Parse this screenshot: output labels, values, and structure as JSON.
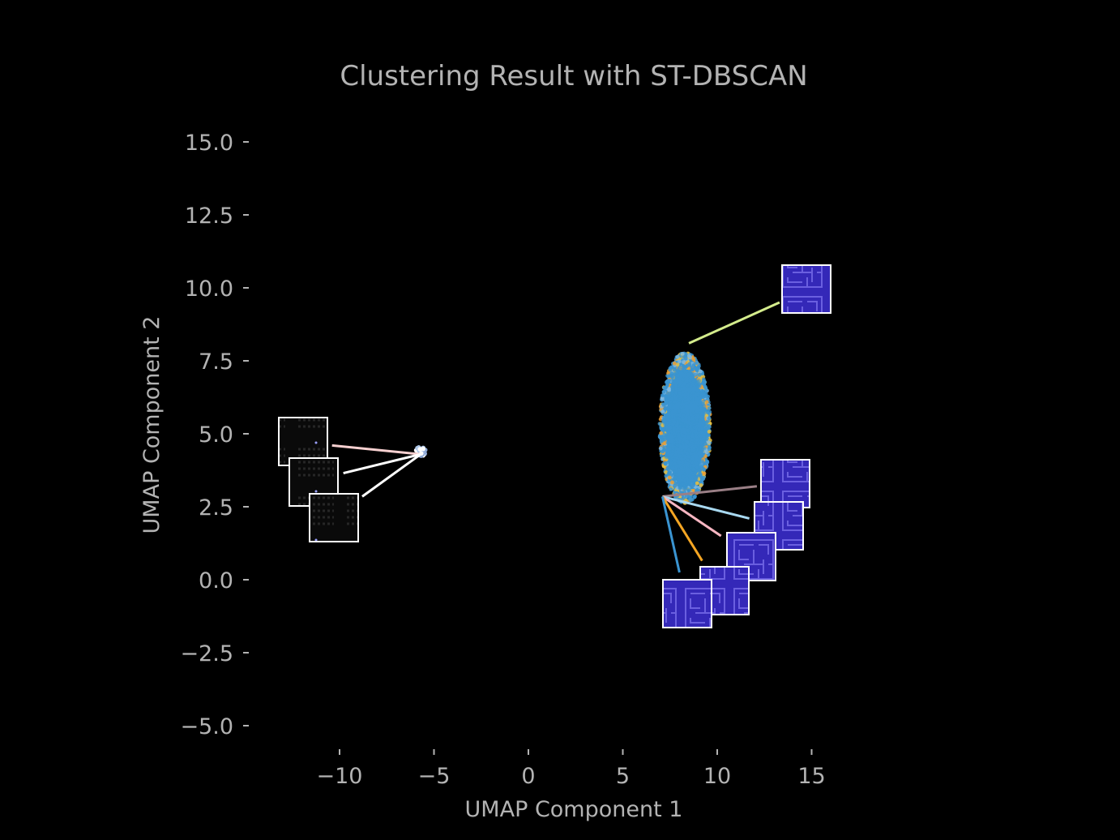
{
  "chart_data": {
    "type": "scatter",
    "title": "Clustering Result with ST-DBSCAN",
    "xlabel": "UMAP Component 1",
    "ylabel": "UMAP Component 2",
    "xlim": [
      -15,
      17
    ],
    "ylim": [
      -5.5,
      16
    ],
    "xticks": [
      -10,
      -5,
      0,
      5,
      10,
      15
    ],
    "xtick_labels": [
      "−10",
      "−5",
      "0",
      "5",
      "10",
      "15"
    ],
    "yticks": [
      15.0,
      12.5,
      10.0,
      7.5,
      5.0,
      2.5,
      0.0,
      -2.5,
      -5.0
    ],
    "ytick_labels": [
      "15.0",
      "12.5",
      "10.0",
      "7.5",
      "5.0",
      "2.5",
      "0.0",
      "−2.5",
      "−5.0"
    ],
    "grid": false,
    "legend": "none",
    "clusters": [
      {
        "center_x": -5.7,
        "center_y": 4.4,
        "spread_x": 0.3,
        "spread_y": 0.2,
        "colors": [
          "#8fa9d6",
          "#aec7e8",
          "#ffffff"
        ]
      },
      {
        "center_x": 8.3,
        "center_y": 5.2,
        "spread_x": 2.65,
        "spread_y": 5.05,
        "colors": [
          "#3a94d1",
          "#3a94d1",
          "#3a94d1",
          "#3a94d1",
          "#f0a030",
          "#e8c040",
          "#7fb8e0"
        ]
      }
    ],
    "annotations": [
      {
        "point": [
          -5.7,
          4.3
        ],
        "label_at": [
          -10.4,
          4.6
        ],
        "line_color": "#f7d0d0",
        "thumbnail": "dark-maze-thumbnail"
      },
      {
        "point": [
          -5.7,
          4.3
        ],
        "label_at": [
          -9.8,
          3.65
        ],
        "line_color": "#ffffff",
        "thumbnail": "dark-maze-thumbnail"
      },
      {
        "point": [
          -5.7,
          4.3
        ],
        "label_at": [
          -8.8,
          2.85
        ],
        "line_color": "#ffffff",
        "thumbnail": "dark-maze-thumbnail"
      },
      {
        "point": [
          8.5,
          8.1
        ],
        "label_at": [
          13.3,
          9.5
        ],
        "line_color": "#d4ec8c",
        "thumbnail": "blue-maze-thumbnail"
      },
      {
        "point": [
          7.1,
          2.85
        ],
        "label_at": [
          12.1,
          3.2
        ],
        "line_color": "#9a7f86",
        "thumbnail": "blue-maze-thumbnail"
      },
      {
        "point": [
          7.1,
          2.85
        ],
        "label_at": [
          11.7,
          2.1
        ],
        "line_color": "#a8d8f0",
        "thumbnail": "blue-maze-thumbnail"
      },
      {
        "point": [
          7.1,
          2.85
        ],
        "label_at": [
          10.2,
          1.5
        ],
        "line_color": "#f7b6c2",
        "thumbnail": "blue-maze-thumbnail"
      },
      {
        "point": [
          7.1,
          2.85
        ],
        "label_at": [
          9.2,
          0.65
        ],
        "line_color": "#f5a623",
        "thumbnail": "blue-maze-thumbnail"
      },
      {
        "point": [
          7.1,
          2.85
        ],
        "label_at": [
          8.0,
          0.25
        ],
        "line_color": "#3a94d1",
        "thumbnail": "blue-maze-thumbnail"
      }
    ]
  }
}
